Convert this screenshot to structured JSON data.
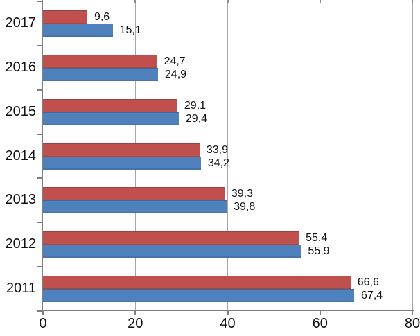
{
  "chart_data": {
    "type": "bar",
    "orientation": "horizontal",
    "title": "",
    "categories": [
      "2017",
      "2016",
      "2015",
      "2014",
      "2013",
      "2012",
      "2011"
    ],
    "series": [
      {
        "name": "red-series",
        "color": "#C0504D",
        "values": [
          9.6,
          24.7,
          29.1,
          33.9,
          39.3,
          55.4,
          66.6
        ],
        "labels": [
          "9,6",
          "24,7",
          "29,1",
          "33,9",
          "39,3",
          "55,4",
          "66,6"
        ]
      },
      {
        "name": "blue-series",
        "color": "#4F81BD",
        "values": [
          15.1,
          24.9,
          29.4,
          34.2,
          39.8,
          55.9,
          67.4
        ],
        "labels": [
          "15,1",
          "24,9",
          "29,4",
          "34,2",
          "39,8",
          "55,9",
          "67,4"
        ]
      }
    ],
    "xlim": [
      0,
      80
    ],
    "x_ticks": [
      0,
      20,
      40,
      60,
      80
    ],
    "x_tick_labels": [
      "0",
      "20",
      "40",
      "60",
      "80"
    ],
    "grid": "vertical-major",
    "legend": "none",
    "value_labels_visible": true,
    "decimal_separator": ","
  },
  "colors": {
    "series_red": "#C0504D",
    "series_blue": "#4F81BD",
    "gridline": "#A6A6A6",
    "grid_top_tick": "#8C8C8C",
    "axis": "#7F7F7F",
    "label_text": "#111111",
    "background": "#FFFFFF"
  }
}
